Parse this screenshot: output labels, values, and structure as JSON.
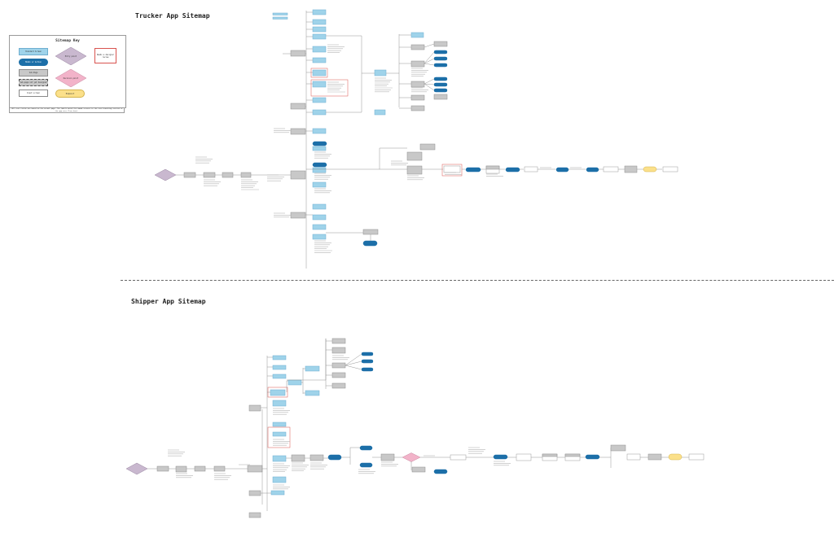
{
  "titles": {
    "trucker": "Trucker App Sitemap",
    "shipper": "Shipper App Sitemap"
  },
  "key": {
    "title": "Sitemap Key",
    "items": [
      {
        "shape": "rect-blue",
        "label": "Standard Screen"
      },
      {
        "shape": "pill-blue",
        "label": "Modal or Action"
      },
      {
        "shape": "rect-gray",
        "label": "Sub-Page"
      },
      {
        "shape": "rect-dashed",
        "label": "Sub-page not yet designed"
      },
      {
        "shape": "rect-white",
        "label": "Input screen"
      },
      {
        "shape": "diamond-purple",
        "label": "Entry point"
      },
      {
        "shape": "diamond-pink",
        "label": "Decision point"
      },
      {
        "shape": "pill-yellow",
        "label": "Endpoint"
      },
      {
        "shape": "rect-red-outline",
        "label": "Needs a designer review"
      }
    ],
    "note": "*All text fields are based on the actual page. The labels match the named screens in the core branching section of the app user flow chart."
  },
  "colors": {
    "blue": "#9fd3ea",
    "blue_stroke": "#6eaed0",
    "dark_blue": "#1c6fa8",
    "gray": "#c8c8c8",
    "gray_stroke": "#8e8e8e",
    "purple": "#c9b8cf",
    "pink": "#f2b3c9",
    "yellow": "#fbe08a",
    "red": "#d9534f",
    "line": "#8a8a8a"
  }
}
